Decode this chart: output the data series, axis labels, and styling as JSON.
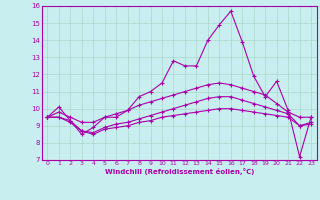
{
  "title": "",
  "xlabel": "Windchill (Refroidissement éolien,°C)",
  "bg_color": "#c8eef0",
  "grid_color": "#aad8cc",
  "line_color": "#aa00aa",
  "xlim": [
    -0.5,
    23.5
  ],
  "ylim": [
    7,
    16
  ],
  "xticks": [
    0,
    1,
    2,
    3,
    4,
    5,
    6,
    7,
    8,
    9,
    10,
    11,
    12,
    13,
    14,
    15,
    16,
    17,
    18,
    19,
    20,
    21,
    22,
    23
  ],
  "yticks": [
    7,
    8,
    9,
    10,
    11,
    12,
    13,
    14,
    15,
    16
  ],
  "line1_y": [
    9.5,
    10.1,
    9.3,
    8.5,
    8.9,
    9.5,
    9.5,
    9.9,
    10.7,
    11.0,
    11.5,
    12.8,
    12.5,
    12.5,
    14.0,
    14.9,
    15.7,
    13.9,
    11.9,
    10.7,
    11.6,
    9.9,
    7.2,
    9.5
  ],
  "line2_y": [
    9.5,
    9.8,
    9.5,
    9.2,
    9.2,
    9.5,
    9.7,
    9.9,
    10.2,
    10.4,
    10.6,
    10.8,
    11.0,
    11.2,
    11.4,
    11.5,
    11.4,
    11.2,
    11.0,
    10.8,
    10.3,
    9.8,
    9.5,
    9.5
  ],
  "line3_y": [
    9.5,
    9.5,
    9.3,
    8.7,
    8.6,
    8.9,
    9.1,
    9.2,
    9.4,
    9.6,
    9.8,
    10.0,
    10.2,
    10.4,
    10.6,
    10.7,
    10.7,
    10.5,
    10.3,
    10.1,
    9.9,
    9.7,
    9.0,
    9.2
  ],
  "line4_y": [
    9.5,
    9.5,
    9.2,
    8.7,
    8.5,
    8.8,
    8.9,
    9.0,
    9.2,
    9.3,
    9.5,
    9.6,
    9.7,
    9.8,
    9.9,
    10.0,
    10.0,
    9.9,
    9.8,
    9.7,
    9.6,
    9.5,
    9.0,
    9.1
  ]
}
